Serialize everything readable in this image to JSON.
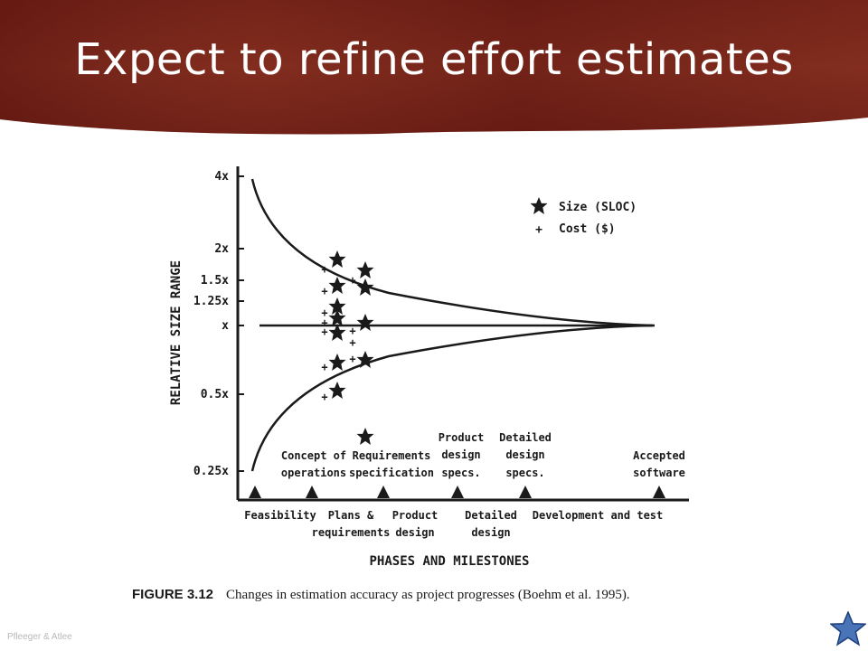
{
  "slide": {
    "title": "Expect to refine effort estimates",
    "footer": "Pfleeger & Atlee"
  },
  "figure": {
    "y_axis_title": "RELATIVE SIZE RANGE",
    "x_axis_title": "PHASES AND MILESTONES",
    "y_ticks": [
      "4x",
      "2x",
      "1.5x",
      "1.25x",
      "x",
      "0.5x",
      "0.25x"
    ],
    "legend": {
      "size_label": "Size (SLOC)",
      "cost_label": "Cost ($)"
    },
    "milestones": [
      [
        "Concept of",
        "operations"
      ],
      [
        "Requirements",
        "specification"
      ],
      [
        "Product",
        "design",
        "specs."
      ],
      [
        "Detailed",
        "design",
        "specs."
      ],
      [
        "Accepted",
        "software"
      ]
    ],
    "phases": {
      "feasibility": [
        "Feasibility"
      ],
      "plans": [
        "Plans &",
        "requirements"
      ],
      "product_design": [
        "Product",
        "design"
      ],
      "detailed_design": [
        "Detailed",
        "design"
      ],
      "dev_test": [
        "Development and test"
      ]
    }
  },
  "caption": {
    "number": "FIGURE 3.12",
    "text": "Changes in estimation accuracy as project progresses (Boehm et al. 1995)."
  },
  "nav": {
    "icon": "star-icon",
    "color": "#4a74b8"
  }
}
